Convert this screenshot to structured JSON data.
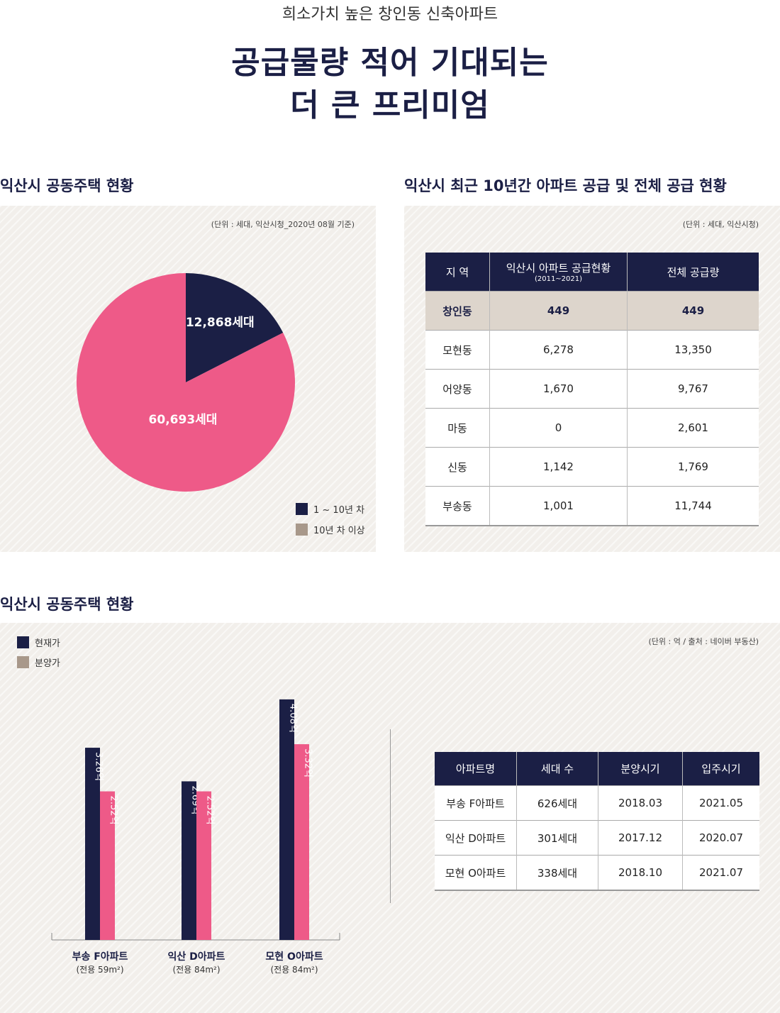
{
  "header": {
    "subtitle": "희소가치 높은 창인동 신축아파트",
    "headline_line1": "공급물량 적어 기대되는",
    "headline_line2": "더 큰 프리미엄"
  },
  "colors": {
    "navy": "#1b1f45",
    "pink": "#ee5a88",
    "taupe": "#a8988a"
  },
  "section_pie": {
    "title": "익산시 공동주택 현황",
    "unit": "(단위 : 세대, 익산시청_2020년 08월 기준)"
  },
  "section_table": {
    "title": "익산시 최근 10년간 아파트 공급 및 전체 공급 현황",
    "unit": "(단위 : 세대, 익산시청)",
    "headers": [
      "지 역",
      "익산시 아파트 공급현황",
      "(2011~2021)",
      "전체 공급량"
    ],
    "rows": [
      [
        "창인동",
        "449",
        "449"
      ],
      [
        "모현동",
        "6,278",
        "13,350"
      ],
      [
        "어양동",
        "1,670",
        "9,767"
      ],
      [
        "마동",
        "0",
        "2,601"
      ],
      [
        "신동",
        "1,142",
        "1,769"
      ],
      [
        "부송동",
        "1,001",
        "11,744"
      ]
    ]
  },
  "section_bar": {
    "title": "익산시 공동주택 현황",
    "unit": "(단위 : 억 / 출처 : 네이버 부동산)"
  },
  "apt_table": {
    "headers": [
      "아파트명",
      "세대 수",
      "분양시기",
      "입주시기"
    ],
    "rows": [
      [
        "부송 F아파트",
        "626세대",
        "2018.03",
        "2021.05"
      ],
      [
        "익산 D아파트",
        "301세대",
        "2017.12",
        "2020.07"
      ],
      [
        "모현 O아파트",
        "338세대",
        "2018.10",
        "2021.07"
      ]
    ]
  },
  "chart_data": [
    {
      "type": "pie",
      "slices": [
        {
          "label": "1 ~ 10년 차",
          "value": 12868,
          "value_label": "12,868세대",
          "color": "#1b1f45"
        },
        {
          "label": "10년 차 이상",
          "value": 60693,
          "value_label": "60,693세대",
          "color": "#ee5a88"
        }
      ],
      "legend": [
        "1 ~ 10년 차",
        "10년 차 이상"
      ],
      "legend_swatch_colors": [
        "#1b1f45",
        "#a8988a"
      ],
      "legend_position": "bottom-right"
    },
    {
      "type": "bar",
      "categories": [
        "부송 F아파트",
        "익산 D아파트",
        "모현 O아파트"
      ],
      "category_sub": [
        "(전용 59m²)",
        "(전용 84m²)",
        "(전용 84m²)"
      ],
      "series": [
        {
          "name": "현재가",
          "values": [
            3.26,
            2.69,
            4.08
          ],
          "labels": [
            "3.26억",
            "2.69억",
            "4.08억"
          ],
          "color": "#1b1f45"
        },
        {
          "name": "분양가",
          "values": [
            2.52,
            2.52,
            3.32
          ],
          "labels": [
            "2.52억",
            "2.52억",
            "3.32억"
          ],
          "color": "#ee5a88"
        }
      ],
      "legend_swatch_colors": [
        "#1b1f45",
        "#a8988a"
      ],
      "legend_position": "top-left",
      "ylim": [
        0,
        4.5
      ]
    }
  ]
}
